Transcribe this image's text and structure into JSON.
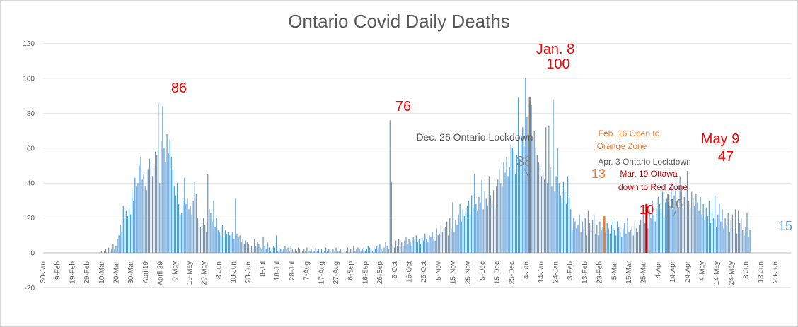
{
  "chart_data": {
    "type": "bar",
    "title": "Ontario Covid Daily Deaths",
    "xlabel": "",
    "ylabel": "",
    "x_start": "30-Jan",
    "ylim": [
      -20,
      120
    ],
    "yticks": [
      -20,
      0,
      20,
      40,
      60,
      80,
      100,
      120
    ],
    "xtick_labels": [
      "30-Jan",
      "9-Feb",
      "19-Feb",
      "29-Feb",
      "10-Mar",
      "20-Mar",
      "30-Mar",
      "April19",
      "April 29",
      "9-May",
      "19-May",
      "29-May",
      "8-Jun",
      "18-Jun",
      "28-Jun",
      "8-Jul",
      "18-Jul",
      "28-Jul",
      "7-Aug",
      "17-Aug",
      "27-Aug",
      "6-Sep",
      "16-Sep",
      "26-Sep",
      "6-Oct",
      "16-Oct",
      "26-Oct",
      "5-Nov",
      "15-Nov",
      "25-Nov",
      "5-Dec",
      "15-Dec",
      "25-Dec",
      "4-Jan",
      "14-Jan",
      "24-Jan",
      "3-Feb",
      "13-Feb",
      "23-Feb",
      "5-Mar",
      "15-Mar",
      "25-Mar",
      "4-Apr",
      "14-Apr",
      "24-Apr",
      "4-May",
      "14-May",
      "24-May",
      "3-Jun",
      "13-Jun",
      "23-Jun"
    ],
    "grid": "horizontal",
    "bar_color": "#5b9bd5",
    "highlight_color": "#808080",
    "series": [
      {
        "values": [
          0,
          0,
          0,
          0,
          0,
          0,
          0,
          0,
          0,
          0,
          0,
          0,
          0,
          0,
          0,
          0,
          0,
          0,
          0,
          0,
          0,
          0,
          0,
          0,
          0,
          0,
          0,
          0,
          0,
          0,
          0,
          0,
          0,
          0,
          0,
          0,
          0,
          0,
          0,
          0,
          0,
          0,
          0,
          0,
          0,
          0,
          0,
          0,
          0,
          0,
          0,
          0,
          0,
          0,
          0,
          0,
          0,
          0,
          0,
          0,
          0,
          0,
          0,
          0,
          0,
          0,
          0,
          0,
          0,
          0,
          0,
          0,
          0,
          0,
          0,
          0,
          0,
          0,
          0,
          0,
          0,
          0,
          0,
          0,
          0,
          0,
          0,
          0,
          0,
          0,
          0,
          0,
          0,
          0,
          0,
          0,
          0,
          0,
          0,
          0,
          0,
          0,
          0,
          0,
          0,
          0,
          0,
          0,
          0,
          0,
          0,
          0,
          0,
          0,
          0,
          0,
          0,
          0,
          0,
          0,
          0,
          0,
          0,
          0,
          0,
          0,
          0,
          0,
          0,
          0,
          0,
          0,
          0,
          0,
          0,
          0,
          0,
          0,
          0,
          0,
          0,
          0,
          0,
          0,
          0,
          0,
          0,
          0,
          0,
          0,
          0,
          0,
          0,
          0,
          0,
          0,
          0,
          0,
          0,
          0,
          0,
          0,
          0,
          0,
          0,
          0,
          0,
          0,
          0,
          0,
          0,
          0,
          0,
          0,
          0,
          0,
          0,
          0,
          0,
          0,
          0,
          0,
          0,
          0,
          0,
          0,
          0,
          0,
          0,
          0,
          0,
          0,
          0,
          0,
          0,
          0,
          0,
          0,
          0,
          0,
          0,
          0,
          0,
          0,
          0,
          0,
          0,
          0,
          0,
          0,
          0,
          0,
          0,
          0,
          0,
          0,
          0,
          0,
          0,
          0,
          0,
          0,
          0,
          0,
          0,
          0,
          0,
          0,
          0,
          0,
          0,
          0,
          0,
          0,
          0,
          0,
          0,
          0,
          0,
          0,
          0,
          0,
          0,
          0,
          0,
          0,
          0,
          0,
          0,
          0,
          0,
          0,
          0,
          0,
          0,
          0,
          0,
          0,
          0,
          0,
          0,
          0,
          0,
          0,
          0,
          0,
          0,
          0,
          0,
          0,
          0,
          0,
          0,
          0,
          0,
          0,
          0,
          0,
          0,
          0,
          0,
          0,
          0,
          0,
          0,
          0,
          0,
          0,
          0,
          0,
          0,
          0,
          0,
          0,
          0,
          0,
          0,
          0,
          0,
          0,
          0,
          0,
          0,
          0,
          0,
          0,
          0,
          0,
          0,
          0,
          0,
          0,
          0,
          0,
          0,
          0,
          0,
          0,
          0,
          0,
          0,
          0,
          0,
          0,
          0,
          0,
          0,
          0,
          0,
          0,
          0,
          0,
          0,
          0,
          0,
          0,
          0,
          0,
          0,
          0,
          0,
          0,
          0,
          0,
          0,
          0,
          0,
          0,
          0,
          0,
          0,
          0,
          0,
          0,
          0,
          0,
          0,
          0,
          0,
          0,
          0,
          0,
          0,
          0,
          0,
          0,
          0,
          0,
          0,
          0,
          0,
          0,
          0,
          0,
          0,
          0,
          0,
          0,
          0,
          0,
          0,
          0,
          0,
          0,
          0,
          0,
          0,
          0,
          0,
          0,
          0,
          0,
          0,
          0,
          0,
          0,
          0,
          0,
          0,
          0,
          0,
          0,
          0,
          0,
          0,
          0,
          0,
          0,
          0,
          0,
          0,
          0,
          0,
          0,
          0,
          0,
          0,
          0,
          0,
          0,
          0,
          0,
          0,
          0,
          0,
          0,
          0,
          0,
          0,
          0,
          0,
          0,
          0,
          0,
          0,
          0,
          0,
          0,
          0,
          0,
          0,
          0,
          0,
          0,
          0,
          0,
          0,
          0,
          0,
          0,
          0,
          0,
          0,
          0,
          0,
          0,
          0,
          0,
          0,
          0,
          0,
          0,
          0,
          0,
          0,
          0,
          0,
          0,
          0,
          0,
          0,
          0,
          0,
          0,
          0,
          0,
          0,
          0,
          0,
          0,
          0,
          0,
          0,
          0,
          0,
          0,
          0,
          0,
          0,
          0,
          0,
          0,
          0,
          0,
          0,
          0,
          0,
          0,
          0,
          0,
          0,
          0,
          0,
          0,
          0,
          0,
          0,
          0,
          0,
          0,
          0,
          0,
          0,
          0,
          0,
          0,
          0,
          0,
          0,
          0,
          0,
          0,
          0,
          0,
          0,
          0,
          0,
          0,
          0,
          0,
          0,
          0,
          0,
          0,
          0,
          0,
          0,
          0,
          0,
          0,
          0,
          0,
          0,
          0,
          0,
          0,
          0,
          0,
          0,
          0,
          0,
          0,
          0,
          0,
          0,
          0,
          0,
          0,
          0,
          0,
          0,
          0,
          0,
          0,
          0,
          0,
          0,
          0,
          0,
          0,
          0,
          0,
          0,
          0,
          0,
          0,
          0,
          0,
          0,
          0,
          0,
          0,
          0,
          0,
          0,
          0,
          0,
          0,
          0,
          0,
          0,
          0,
          0,
          0,
          0,
          0,
          0,
          0,
          0,
          0,
          0,
          0,
          0,
          0,
          0,
          0,
          0,
          0,
          0,
          0,
          0
        ],
        "segments": [
          [
            40,
            [
              1,
              0,
              1,
              2,
              0,
              3,
              1,
              2,
              5,
              2,
              4,
              8
            ]
          ],
          [
            52,
            [
              10,
              16,
              12,
              27,
              20,
              24,
              21,
              26,
              22,
              36,
              30,
              43,
              38,
              40,
              50,
              55,
              42,
              45,
              38,
              36,
              48,
              54,
              52,
              44,
              50,
              58,
              56,
              86,
              40,
              64,
              84,
              60,
              52,
              68,
              57,
              65,
              55,
              48,
              38,
              33,
              40,
              28,
              22,
              23,
              30,
              43,
              28,
              31,
              25,
              27,
              22,
              30,
              41,
              34,
              20,
              18,
              15,
              17,
              20,
              16,
              12,
              45,
              25,
              23,
              18,
              30,
              15,
              20,
              13,
              12,
              10,
              16,
              9,
              13,
              11,
              12,
              10,
              11,
              12,
              8,
              31,
              11,
              9,
              10,
              6,
              8,
              5,
              7,
              6,
              5,
              3,
              4,
              2,
              8,
              4,
              6,
              5,
              3,
              2,
              9,
              4,
              2,
              6,
              3,
              1,
              2,
              4,
              3,
              10,
              1,
              3,
              2,
              1,
              2,
              4,
              2,
              3,
              1,
              4,
              2,
              1,
              2,
              1,
              3,
              2,
              0,
              1,
              2,
              1,
              3,
              1,
              1,
              2,
              0,
              1,
              3,
              1,
              2,
              1,
              2,
              0,
              1,
              3,
              1,
              2,
              1,
              0,
              2,
              1,
              3,
              1,
              1,
              2,
              1,
              0,
              2,
              1,
              3,
              1,
              2,
              1,
              4,
              1,
              2,
              3,
              2,
              1,
              2,
              3,
              1,
              2,
              4,
              3,
              2,
              1,
              3,
              2,
              4,
              3,
              5,
              2,
              1,
              3,
              6,
              4,
              2,
              76,
              41,
              5,
              3,
              7,
              4,
              8,
              5,
              6,
              4,
              7,
              9,
              5,
              8,
              6,
              4,
              9,
              7,
              10,
              6,
              8,
              5,
              9,
              7,
              11,
              8,
              6,
              10,
              9,
              12,
              8,
              7,
              14,
              10,
              11,
              16,
              12,
              13,
              15,
              18,
              10,
              20,
              14,
              29,
              12,
              19,
              16,
              22,
              28,
              18,
              25,
              21,
              24,
              27,
              30,
              22,
              33,
              26,
              45,
              28,
              24,
              32,
              29,
              42,
              25,
              35,
              31,
              27,
              44,
              33,
              30,
              36,
              26,
              38,
              42,
              48,
              40,
              38,
              52,
              46,
              55,
              44,
              49,
              62,
              60,
              58,
              45,
              56,
              89,
              54,
              67,
              72,
              61,
              100,
              78,
              65,
              89,
              85,
              64,
              70,
              60,
              56,
              52,
              50,
              44,
              46,
              42,
              72,
              40,
              73,
              49,
              38,
              88,
              35,
              44,
              60,
              40,
              33,
              30,
              41,
              36,
              28,
              44,
              32,
              25,
              13,
              20,
              18,
              14,
              16,
              22,
              12,
              18,
              15,
              20,
              10,
              24,
              17,
              14,
              19,
              22,
              11,
              16,
              10,
              18,
              13,
              15,
              21,
              12,
              17,
              14,
              11,
              16,
              19,
              13,
              10,
              18,
              15,
              12,
              9,
              14,
              17,
              11,
              20,
              12,
              13,
              15,
              10,
              18,
              14,
              12,
              16,
              19,
              23,
              22,
              17,
              28,
              14,
              25,
              20,
              30,
              22,
              18,
              26,
              32,
              28,
              24,
              35,
              20,
              29,
              31,
              34,
              27,
              40,
              25,
              33,
              37,
              30,
              26,
              44,
              36,
              28,
              32,
              38,
              47,
              30,
              26,
              35,
              31,
              27,
              34,
              29,
              24,
              32,
              22,
              28,
              19,
              26,
              21,
              30,
              17,
              24,
              20,
              33,
              15,
              22,
              28,
              18,
              25,
              14,
              20,
              16,
              23,
              12,
              19,
              22,
              15,
              25,
              11,
              24,
              17,
              20,
              13,
              10,
              15,
              23,
              9,
              13
            ]
          ]
        ]
      }
    ],
    "highlights": [
      {
        "label": "38",
        "day": 334,
        "value": 38,
        "color": "#808080"
      },
      {
        "label": "13",
        "day": 385,
        "value": 13,
        "color": "#ed7d31"
      },
      {
        "label": "10",
        "day": 414,
        "value": 10,
        "color": "#c00000"
      },
      {
        "label": "16",
        "day": 429,
        "value": 16,
        "color": "#808080"
      }
    ],
    "annotations": [
      {
        "text": "86",
        "color": "#ff0000"
      },
      {
        "text": "76",
        "color": "#ff0000"
      },
      {
        "text": "Jan. 8",
        "color": "#ff0000"
      },
      {
        "text": "100",
        "color": "#ff0000"
      },
      {
        "text": "Dec. 26 Ontario Lockdown",
        "color": "#595959"
      },
      {
        "text": "38",
        "color": "#808080"
      },
      {
        "text": "Feb. 16 Open to",
        "color": "#ed7d31"
      },
      {
        "text": "Orange Zone",
        "color": "#ed7d31"
      },
      {
        "text": "Apr. 3 Ontario Lockdown",
        "color": "#595959"
      },
      {
        "text": "13",
        "color": "#ed7d31"
      },
      {
        "text": "Mar. 19 Ottawa",
        "color": "#c00000"
      },
      {
        "text": "down to Red Zone",
        "color": "#c00000"
      },
      {
        "text": "May 9",
        "color": "#ff0000"
      },
      {
        "text": "47",
        "color": "#ff0000"
      },
      {
        "text": "10",
        "color": "#ff0000"
      },
      {
        "text": "16",
        "color": "#808080"
      },
      {
        "text": "15",
        "color": "#5b9bd5"
      }
    ]
  }
}
